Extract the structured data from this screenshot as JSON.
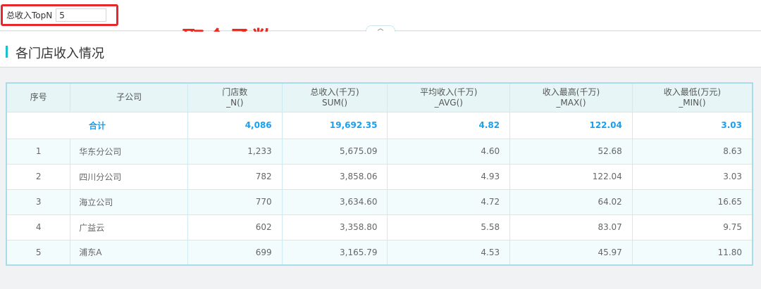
{
  "filter": {
    "label": "总收入TopN",
    "value": "5"
  },
  "annotation": "聚合函数",
  "section": {
    "title": "各门店收入情况"
  },
  "table": {
    "headers": [
      [
        "序号",
        ""
      ],
      [
        "子公司",
        ""
      ],
      [
        "门店数",
        "_N()"
      ],
      [
        "总收入(千万)",
        "SUM()"
      ],
      [
        "平均收入(千万)",
        "_AVG()"
      ],
      [
        "收入最高(千万)",
        "_MAX()"
      ],
      [
        "收入最低(万元)",
        "_MIN()"
      ]
    ],
    "total": {
      "label": "合计",
      "values": [
        "4,086",
        "19,692.35",
        "4.82",
        "122.04",
        "3.03"
      ]
    },
    "rows": [
      [
        "1",
        "华东分公司",
        "1,233",
        "5,675.09",
        "4.60",
        "52.68",
        "8.63"
      ],
      [
        "2",
        "四川分公司",
        "782",
        "3,858.06",
        "4.93",
        "122.04",
        "3.03"
      ],
      [
        "3",
        "海立公司",
        "770",
        "3,634.60",
        "4.72",
        "64.02",
        "16.65"
      ],
      [
        "4",
        "广益云",
        "602",
        "3,358.80",
        "5.58",
        "83.07",
        "9.75"
      ],
      [
        "5",
        "浦东A",
        "699",
        "3,165.79",
        "4.53",
        "45.97",
        "11.80"
      ]
    ]
  },
  "colors": {
    "accent": "#1fbfcf",
    "highlight": "#1aa0f0",
    "annotation": "#f0281e"
  }
}
